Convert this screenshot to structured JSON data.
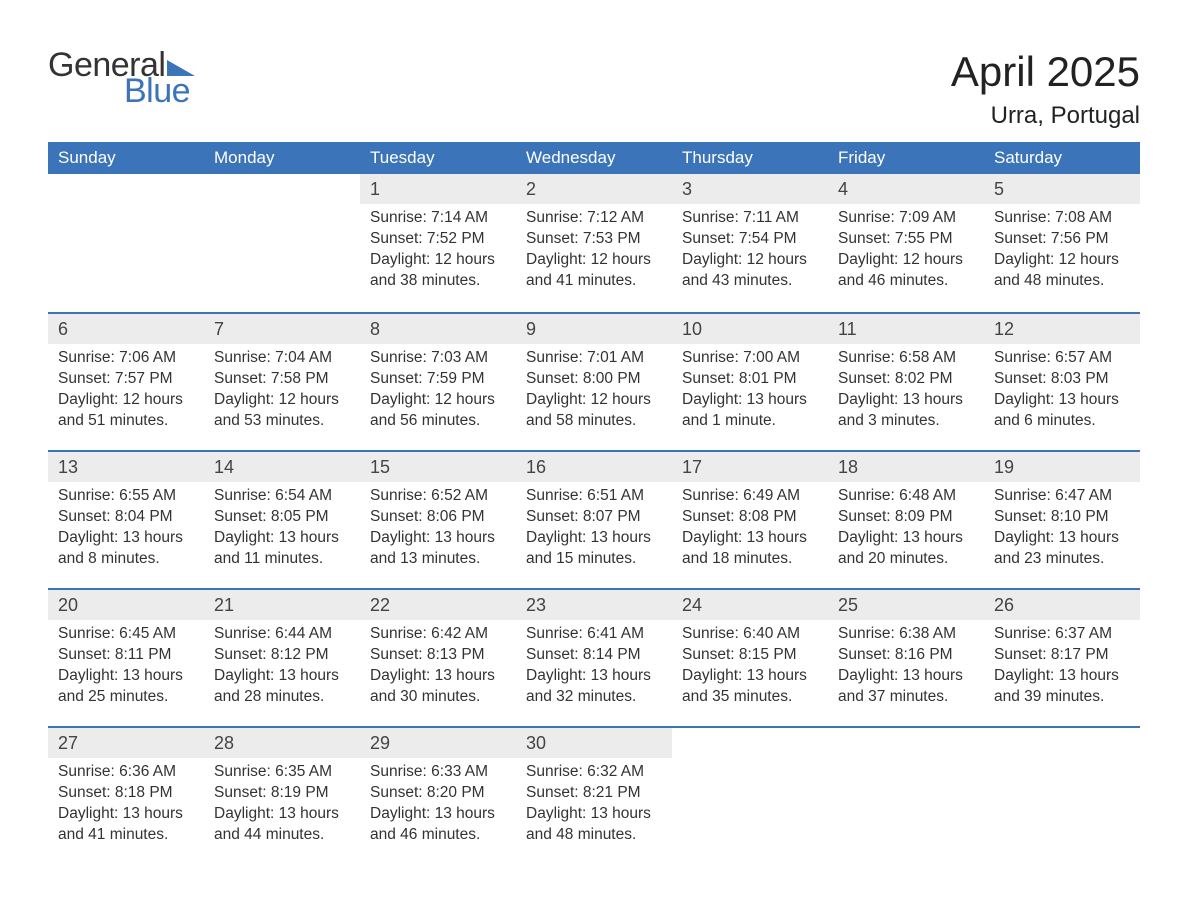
{
  "logo": {
    "general": "General",
    "blue": "Blue",
    "triangle_color": "#3b74b9"
  },
  "title": "April 2025",
  "location": "Urra, Portugal",
  "colors": {
    "header_bg": "#3b74b9",
    "header_text": "#ffffff",
    "daynum_bg": "#ececec",
    "row_border": "#3b74b9",
    "body_text": "#333333"
  },
  "weekdays": [
    "Sunday",
    "Monday",
    "Tuesday",
    "Wednesday",
    "Thursday",
    "Friday",
    "Saturday"
  ],
  "weeks": [
    [
      null,
      null,
      {
        "n": "1",
        "sunrise": "Sunrise: 7:14 AM",
        "sunset": "Sunset: 7:52 PM",
        "day1": "Daylight: 12 hours",
        "day2": "and 38 minutes."
      },
      {
        "n": "2",
        "sunrise": "Sunrise: 7:12 AM",
        "sunset": "Sunset: 7:53 PM",
        "day1": "Daylight: 12 hours",
        "day2": "and 41 minutes."
      },
      {
        "n": "3",
        "sunrise": "Sunrise: 7:11 AM",
        "sunset": "Sunset: 7:54 PM",
        "day1": "Daylight: 12 hours",
        "day2": "and 43 minutes."
      },
      {
        "n": "4",
        "sunrise": "Sunrise: 7:09 AM",
        "sunset": "Sunset: 7:55 PM",
        "day1": "Daylight: 12 hours",
        "day2": "and 46 minutes."
      },
      {
        "n": "5",
        "sunrise": "Sunrise: 7:08 AM",
        "sunset": "Sunset: 7:56 PM",
        "day1": "Daylight: 12 hours",
        "day2": "and 48 minutes."
      }
    ],
    [
      {
        "n": "6",
        "sunrise": "Sunrise: 7:06 AM",
        "sunset": "Sunset: 7:57 PM",
        "day1": "Daylight: 12 hours",
        "day2": "and 51 minutes."
      },
      {
        "n": "7",
        "sunrise": "Sunrise: 7:04 AM",
        "sunset": "Sunset: 7:58 PM",
        "day1": "Daylight: 12 hours",
        "day2": "and 53 minutes."
      },
      {
        "n": "8",
        "sunrise": "Sunrise: 7:03 AM",
        "sunset": "Sunset: 7:59 PM",
        "day1": "Daylight: 12 hours",
        "day2": "and 56 minutes."
      },
      {
        "n": "9",
        "sunrise": "Sunrise: 7:01 AM",
        "sunset": "Sunset: 8:00 PM",
        "day1": "Daylight: 12 hours",
        "day2": "and 58 minutes."
      },
      {
        "n": "10",
        "sunrise": "Sunrise: 7:00 AM",
        "sunset": "Sunset: 8:01 PM",
        "day1": "Daylight: 13 hours",
        "day2": "and 1 minute."
      },
      {
        "n": "11",
        "sunrise": "Sunrise: 6:58 AM",
        "sunset": "Sunset: 8:02 PM",
        "day1": "Daylight: 13 hours",
        "day2": "and 3 minutes."
      },
      {
        "n": "12",
        "sunrise": "Sunrise: 6:57 AM",
        "sunset": "Sunset: 8:03 PM",
        "day1": "Daylight: 13 hours",
        "day2": "and 6 minutes."
      }
    ],
    [
      {
        "n": "13",
        "sunrise": "Sunrise: 6:55 AM",
        "sunset": "Sunset: 8:04 PM",
        "day1": "Daylight: 13 hours",
        "day2": "and 8 minutes."
      },
      {
        "n": "14",
        "sunrise": "Sunrise: 6:54 AM",
        "sunset": "Sunset: 8:05 PM",
        "day1": "Daylight: 13 hours",
        "day2": "and 11 minutes."
      },
      {
        "n": "15",
        "sunrise": "Sunrise: 6:52 AM",
        "sunset": "Sunset: 8:06 PM",
        "day1": "Daylight: 13 hours",
        "day2": "and 13 minutes."
      },
      {
        "n": "16",
        "sunrise": "Sunrise: 6:51 AM",
        "sunset": "Sunset: 8:07 PM",
        "day1": "Daylight: 13 hours",
        "day2": "and 15 minutes."
      },
      {
        "n": "17",
        "sunrise": "Sunrise: 6:49 AM",
        "sunset": "Sunset: 8:08 PM",
        "day1": "Daylight: 13 hours",
        "day2": "and 18 minutes."
      },
      {
        "n": "18",
        "sunrise": "Sunrise: 6:48 AM",
        "sunset": "Sunset: 8:09 PM",
        "day1": "Daylight: 13 hours",
        "day2": "and 20 minutes."
      },
      {
        "n": "19",
        "sunrise": "Sunrise: 6:47 AM",
        "sunset": "Sunset: 8:10 PM",
        "day1": "Daylight: 13 hours",
        "day2": "and 23 minutes."
      }
    ],
    [
      {
        "n": "20",
        "sunrise": "Sunrise: 6:45 AM",
        "sunset": "Sunset: 8:11 PM",
        "day1": "Daylight: 13 hours",
        "day2": "and 25 minutes."
      },
      {
        "n": "21",
        "sunrise": "Sunrise: 6:44 AM",
        "sunset": "Sunset: 8:12 PM",
        "day1": "Daylight: 13 hours",
        "day2": "and 28 minutes."
      },
      {
        "n": "22",
        "sunrise": "Sunrise: 6:42 AM",
        "sunset": "Sunset: 8:13 PM",
        "day1": "Daylight: 13 hours",
        "day2": "and 30 minutes."
      },
      {
        "n": "23",
        "sunrise": "Sunrise: 6:41 AM",
        "sunset": "Sunset: 8:14 PM",
        "day1": "Daylight: 13 hours",
        "day2": "and 32 minutes."
      },
      {
        "n": "24",
        "sunrise": "Sunrise: 6:40 AM",
        "sunset": "Sunset: 8:15 PM",
        "day1": "Daylight: 13 hours",
        "day2": "and 35 minutes."
      },
      {
        "n": "25",
        "sunrise": "Sunrise: 6:38 AM",
        "sunset": "Sunset: 8:16 PM",
        "day1": "Daylight: 13 hours",
        "day2": "and 37 minutes."
      },
      {
        "n": "26",
        "sunrise": "Sunrise: 6:37 AM",
        "sunset": "Sunset: 8:17 PM",
        "day1": "Daylight: 13 hours",
        "day2": "and 39 minutes."
      }
    ],
    [
      {
        "n": "27",
        "sunrise": "Sunrise: 6:36 AM",
        "sunset": "Sunset: 8:18 PM",
        "day1": "Daylight: 13 hours",
        "day2": "and 41 minutes."
      },
      {
        "n": "28",
        "sunrise": "Sunrise: 6:35 AM",
        "sunset": "Sunset: 8:19 PM",
        "day1": "Daylight: 13 hours",
        "day2": "and 44 minutes."
      },
      {
        "n": "29",
        "sunrise": "Sunrise: 6:33 AM",
        "sunset": "Sunset: 8:20 PM",
        "day1": "Daylight: 13 hours",
        "day2": "and 46 minutes."
      },
      {
        "n": "30",
        "sunrise": "Sunrise: 6:32 AM",
        "sunset": "Sunset: 8:21 PM",
        "day1": "Daylight: 13 hours",
        "day2": "and 48 minutes."
      },
      null,
      null,
      null
    ]
  ]
}
